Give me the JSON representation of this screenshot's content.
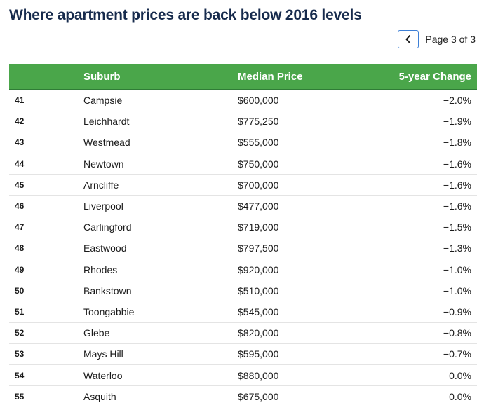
{
  "title": "Where apartment prices are back below 2016 levels",
  "pagination": {
    "prev_icon": "chevron-left-icon",
    "label": "Page 3 of 3"
  },
  "colors": {
    "header_bg": "#4aa64a",
    "title": "#172b4d",
    "pager_border": "#3d7fd6"
  },
  "table": {
    "columns": [
      "",
      "Suburb",
      "Median Price",
      "5-year Change"
    ],
    "rows": [
      {
        "rank": "41",
        "suburb": "Campsie",
        "price": "$600,000",
        "change": "−2.0%"
      },
      {
        "rank": "42",
        "suburb": "Leichhardt",
        "price": "$775,250",
        "change": "−1.9%"
      },
      {
        "rank": "43",
        "suburb": "Westmead",
        "price": "$555,000",
        "change": "−1.8%"
      },
      {
        "rank": "44",
        "suburb": "Newtown",
        "price": "$750,000",
        "change": "−1.6%"
      },
      {
        "rank": "45",
        "suburb": "Arncliffe",
        "price": "$700,000",
        "change": "−1.6%"
      },
      {
        "rank": "46",
        "suburb": "Liverpool",
        "price": "$477,000",
        "change": "−1.6%"
      },
      {
        "rank": "47",
        "suburb": "Carlingford",
        "price": "$719,000",
        "change": "−1.5%"
      },
      {
        "rank": "48",
        "suburb": "Eastwood",
        "price": "$797,500",
        "change": "−1.3%"
      },
      {
        "rank": "49",
        "suburb": "Rhodes",
        "price": "$920,000",
        "change": "−1.0%"
      },
      {
        "rank": "50",
        "suburb": "Bankstown",
        "price": "$510,000",
        "change": "−1.0%"
      },
      {
        "rank": "51",
        "suburb": "Toongabbie",
        "price": "$545,000",
        "change": "−0.9%"
      },
      {
        "rank": "52",
        "suburb": "Glebe",
        "price": "$820,000",
        "change": "−0.8%"
      },
      {
        "rank": "53",
        "suburb": "Mays Hill",
        "price": "$595,000",
        "change": "−0.7%"
      },
      {
        "rank": "54",
        "suburb": "Waterloo",
        "price": "$880,000",
        "change": "0.0%"
      },
      {
        "rank": "55",
        "suburb": "Asquith",
        "price": "$675,000",
        "change": "0.0%"
      }
    ]
  }
}
